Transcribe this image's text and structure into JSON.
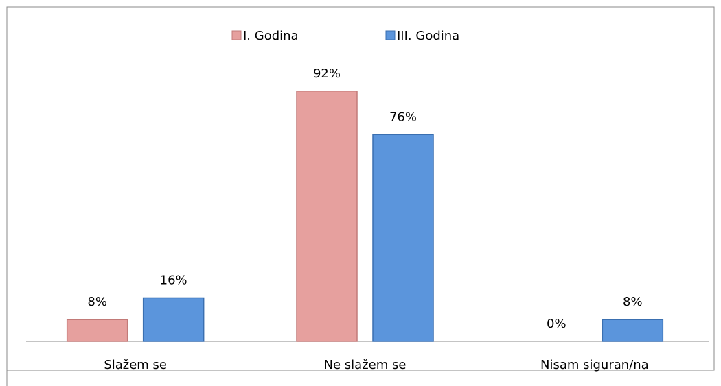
{
  "chart_data": {
    "type": "bar",
    "categories": [
      "Slažem se",
      "Ne slažem se",
      "Nisam siguran/na"
    ],
    "series": [
      {
        "name": "I. Godina",
        "color": "#e6a09e",
        "values": [
          8,
          92,
          0
        ],
        "value_labels": [
          "8%",
          "92%",
          "0%"
        ]
      },
      {
        "name": "III. Godina",
        "color": "#5b95dc",
        "values": [
          16,
          76,
          8
        ],
        "value_labels": [
          "16%",
          "76%",
          "8%"
        ]
      }
    ],
    "ylim": [
      0,
      100
    ],
    "legend": "top"
  }
}
